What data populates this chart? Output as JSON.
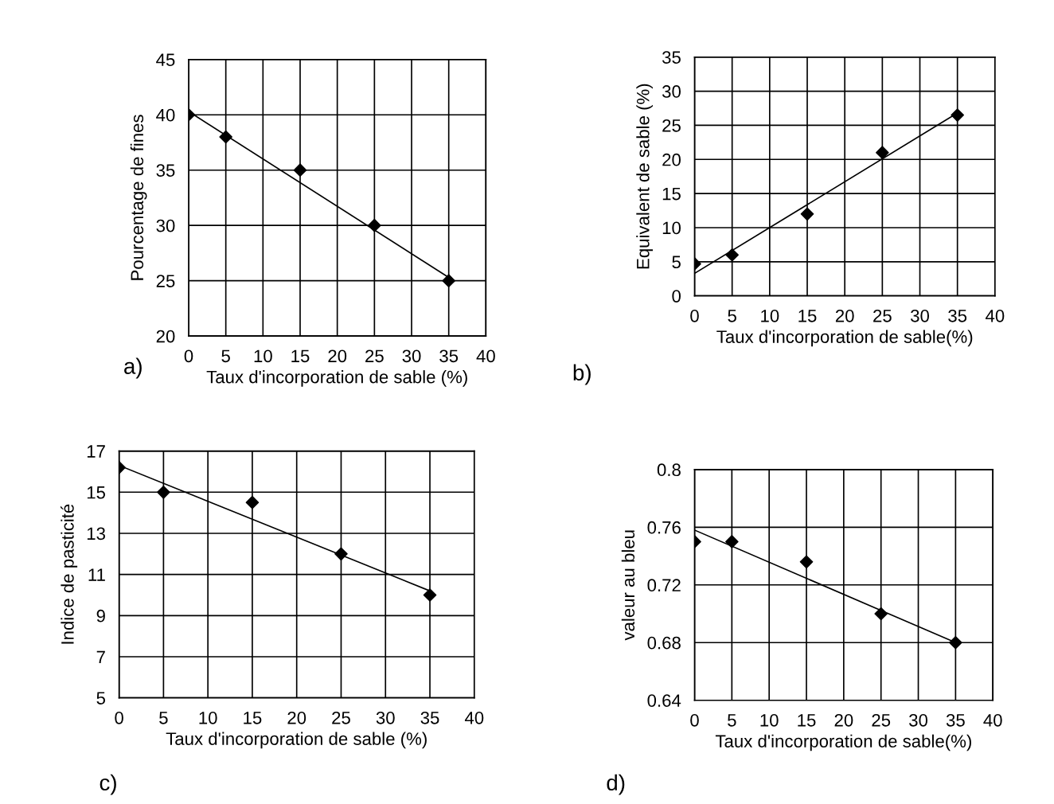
{
  "chart_data": [
    {
      "type": "scatter",
      "xlabel": "Taux d'incorporation de sable (%)",
      "ylabel": "Pourcentage de fines",
      "annotations": [
        "a)"
      ],
      "xlim": [
        0,
        40
      ],
      "ylim": [
        20,
        45
      ],
      "xticks": [
        0,
        5,
        10,
        15,
        20,
        25,
        30,
        35,
        40
      ],
      "yticks": [
        20,
        25,
        30,
        35,
        40,
        45
      ],
      "grid": true,
      "series": [
        {
          "marker": "diamond",
          "color": "#000000",
          "x": [
            0,
            5,
            15,
            25,
            35
          ],
          "values": [
            40,
            38,
            35,
            30,
            25
          ]
        },
        {
          "type": "line",
          "color": "#000000",
          "x": [
            0,
            35
          ],
          "values": [
            40.3,
            25.3
          ]
        }
      ]
    },
    {
      "type": "scatter",
      "xlabel": "Taux d'incorporation de sable(%)",
      "ylabel": "Equivalent de sable (%)",
      "annotations": [
        "b)"
      ],
      "xlim": [
        0,
        40
      ],
      "ylim": [
        0,
        35
      ],
      "xticks": [
        0,
        5,
        10,
        15,
        20,
        25,
        30,
        35,
        40
      ],
      "yticks": [
        0,
        5,
        10,
        15,
        20,
        25,
        30,
        35
      ],
      "grid": true,
      "series": [
        {
          "marker": "diamond",
          "color": "#000000",
          "x": [
            0,
            5,
            15,
            25,
            35
          ],
          "values": [
            4.7,
            6,
            12,
            21,
            26.5
          ]
        },
        {
          "type": "line",
          "color": "#000000",
          "x": [
            0,
            35
          ],
          "values": [
            3.3,
            26.8
          ]
        }
      ]
    },
    {
      "type": "scatter",
      "xlabel": "Taux d'incorporation de sable (%)",
      "ylabel": "Indice de pasticité",
      "annotations": [
        "c)"
      ],
      "xlim": [
        0,
        40
      ],
      "ylim": [
        5,
        17
      ],
      "xticks": [
        0,
        5,
        10,
        15,
        20,
        25,
        30,
        35,
        40
      ],
      "yticks": [
        5,
        7,
        9,
        11,
        13,
        15,
        17
      ],
      "grid": true,
      "series": [
        {
          "marker": "diamond",
          "color": "#000000",
          "x": [
            0,
            5,
            15,
            25,
            35
          ],
          "values": [
            16.2,
            15,
            14.5,
            12,
            10
          ]
        },
        {
          "type": "line",
          "color": "#000000",
          "x": [
            0,
            35
          ],
          "values": [
            16.3,
            10.2
          ]
        }
      ]
    },
    {
      "type": "scatter",
      "xlabel": "Taux d'incorporation de sable(%)",
      "ylabel": "valeur au bleu",
      "annotations": [
        "d)"
      ],
      "xlim": [
        0,
        40
      ],
      "ylim": [
        0.64,
        0.8
      ],
      "xticks": [
        0,
        5,
        10,
        15,
        20,
        25,
        30,
        35,
        40
      ],
      "yticks": [
        0.64,
        0.68,
        0.72,
        0.76,
        0.8
      ],
      "grid": true,
      "series": [
        {
          "marker": "diamond",
          "color": "#000000",
          "x": [
            0,
            5,
            15,
            25,
            35
          ],
          "values": [
            0.75,
            0.75,
            0.736,
            0.7,
            0.68
          ]
        },
        {
          "type": "line",
          "color": "#000000",
          "x": [
            0,
            35
          ],
          "values": [
            0.758,
            0.68
          ]
        }
      ]
    }
  ]
}
